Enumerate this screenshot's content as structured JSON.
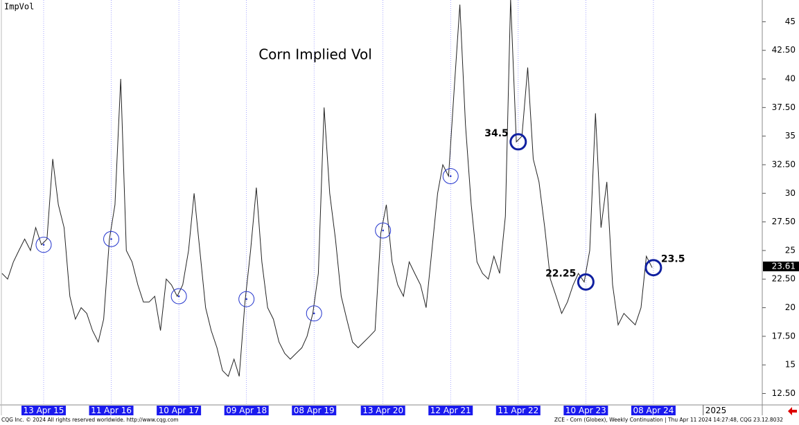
{
  "chart_data": {
    "type": "line",
    "title": "Corn Implied Vol",
    "ylabel": "ImpVol",
    "footer_left": "CQG Inc. © 2024 All rights reserved worldwide. http://www.cqg.com",
    "footer_right": "ZCE - Corn (Globex), Weekly Continuation | Thu Apr 11 2024 14:27:48, CQG 23.12.8032",
    "color": "#222222",
    "x": [
      "2014-09-01",
      "2014-10-01",
      "2014-11-01",
      "2014-12-01",
      "2015-01-01",
      "2015-02-01",
      "2015-03-01",
      "2015-04-01",
      "2015-05-01",
      "2015-06-01",
      "2015-07-01",
      "2015-08-01",
      "2015-09-01",
      "2015-10-01",
      "2015-11-01",
      "2015-12-01",
      "2016-01-01",
      "2016-02-01",
      "2016-03-01",
      "2016-04-01",
      "2016-05-01",
      "2016-06-01",
      "2016-07-01",
      "2016-08-01",
      "2016-09-01",
      "2016-10-01",
      "2016-11-01",
      "2016-12-01",
      "2017-01-01",
      "2017-02-01",
      "2017-03-01",
      "2017-04-01",
      "2017-05-01",
      "2017-06-01",
      "2017-07-01",
      "2017-08-01",
      "2017-09-01",
      "2017-10-01",
      "2017-11-01",
      "2017-12-01",
      "2018-01-01",
      "2018-02-01",
      "2018-03-01",
      "2018-04-01",
      "2018-05-01",
      "2018-06-01",
      "2018-07-01",
      "2018-08-01",
      "2018-09-01",
      "2018-10-01",
      "2018-11-01",
      "2018-12-01",
      "2019-01-01",
      "2019-02-01",
      "2019-03-01",
      "2019-04-01",
      "2019-05-01",
      "2019-06-01",
      "2019-07-01",
      "2019-08-01",
      "2019-09-01",
      "2019-10-01",
      "2019-11-01",
      "2019-12-01",
      "2020-01-01",
      "2020-02-01",
      "2020-03-01",
      "2020-04-01",
      "2020-05-01",
      "2020-06-01",
      "2020-07-01",
      "2020-08-01",
      "2020-09-01",
      "2020-10-01",
      "2020-11-01",
      "2020-12-01",
      "2021-01-01",
      "2021-02-01",
      "2021-03-01",
      "2021-04-01",
      "2021-05-01",
      "2021-06-01",
      "2021-07-01",
      "2021-08-01",
      "2021-09-01",
      "2021-10-01",
      "2021-11-01",
      "2021-12-01",
      "2022-01-01",
      "2022-02-01",
      "2022-03-01",
      "2022-04-01",
      "2022-05-01",
      "2022-06-01",
      "2022-07-01",
      "2022-08-01",
      "2022-09-01",
      "2022-10-01",
      "2022-11-01",
      "2022-12-01",
      "2023-01-01",
      "2023-02-01",
      "2023-03-01",
      "2023-04-01",
      "2023-05-01",
      "2023-06-01",
      "2023-07-01",
      "2023-08-01",
      "2023-09-01",
      "2023-10-01",
      "2023-11-01",
      "2023-12-01",
      "2024-01-01",
      "2024-02-01",
      "2024-03-01",
      "2024-04-01"
    ],
    "values": [
      23,
      22.5,
      24,
      25,
      26,
      25,
      27,
      25.5,
      26,
      33,
      29,
      27,
      21,
      19,
      20,
      19.5,
      18,
      17,
      19,
      26,
      29,
      40,
      25,
      24,
      22,
      20.5,
      20.5,
      21,
      18,
      22.5,
      22,
      21,
      22,
      25,
      30,
      25,
      20,
      18,
      16.5,
      14.5,
      14,
      15.5,
      14,
      20.5,
      25,
      30.5,
      24,
      20,
      19,
      17,
      16,
      15.5,
      16,
      16.5,
      17.5,
      19.5,
      23,
      37.5,
      30,
      26,
      21,
      19,
      17,
      16.5,
      17,
      17.5,
      18,
      26.5,
      29,
      24,
      22,
      21,
      24,
      23,
      22,
      20,
      25,
      30,
      32.5,
      31.5,
      39,
      46.5,
      36,
      29,
      24,
      23,
      22.5,
      24.5,
      23,
      28,
      47,
      34.5,
      35,
      41,
      33,
      31,
      27,
      22.5,
      21,
      19.5,
      20.5,
      22,
      23,
      22.25,
      25,
      37,
      27,
      31,
      22,
      18.5,
      19.5,
      19,
      18.5,
      20,
      24.5,
      23.5
    ],
    "xlim": [
      "2014-08-21",
      "2025-11-15"
    ],
    "ylim": [
      11.5,
      46.9
    ],
    "yticks": [
      {
        "value": 12.5,
        "label": "12.50"
      },
      15,
      {
        "value": 17.5,
        "label": "17.50"
      },
      20,
      {
        "value": 22.5,
        "label": "22.50"
      },
      25,
      {
        "value": 27.5,
        "label": "27.50"
      },
      30,
      {
        "value": 32.5,
        "label": "32.50"
      },
      35,
      {
        "value": 37.5,
        "label": "37.50"
      },
      40,
      {
        "value": 42.5,
        "label": "42.50"
      },
      45
    ],
    "xticks": [
      {
        "value": "2015-04-13",
        "label": "13 Apr 15"
      },
      {
        "value": "2016-04-11",
        "label": "11 Apr 16"
      },
      {
        "value": "2017-04-10",
        "label": "10 Apr 17"
      },
      {
        "value": "2018-04-09",
        "label": "09 Apr 18"
      },
      {
        "value": "2019-04-08",
        "label": "08 Apr 19"
      },
      {
        "value": "2020-04-13",
        "label": "13 Apr 20"
      },
      {
        "value": "2021-04-12",
        "label": "12 Apr 21"
      },
      {
        "value": "2022-04-11",
        "label": "11 Apr 22"
      },
      {
        "value": "2023-04-10",
        "label": "10 Apr 23"
      },
      {
        "value": "2024-04-08",
        "label": "08 Apr 24"
      }
    ],
    "year_marker": {
      "value": "2025-01-01",
      "label": "2025"
    },
    "last_value": 23.61,
    "markers": [
      {
        "x": "2015-04-13",
        "y": 25.5
      },
      {
        "x": "2016-04-11",
        "y": 26
      },
      {
        "x": "2017-04-10",
        "y": 21
      },
      {
        "x": "2018-04-09",
        "y": 20.75
      },
      {
        "x": "2019-04-08",
        "y": 19.5
      },
      {
        "x": "2020-04-13",
        "y": 26.75
      },
      {
        "x": "2021-04-12",
        "y": 31.5
      }
    ],
    "annotations": [
      {
        "x": "2022-04-11",
        "y": 34.5
      },
      {
        "x": "2023-04-10",
        "y": 22.25
      },
      {
        "x": "2024-04-08",
        "y": 23.5
      }
    ]
  }
}
